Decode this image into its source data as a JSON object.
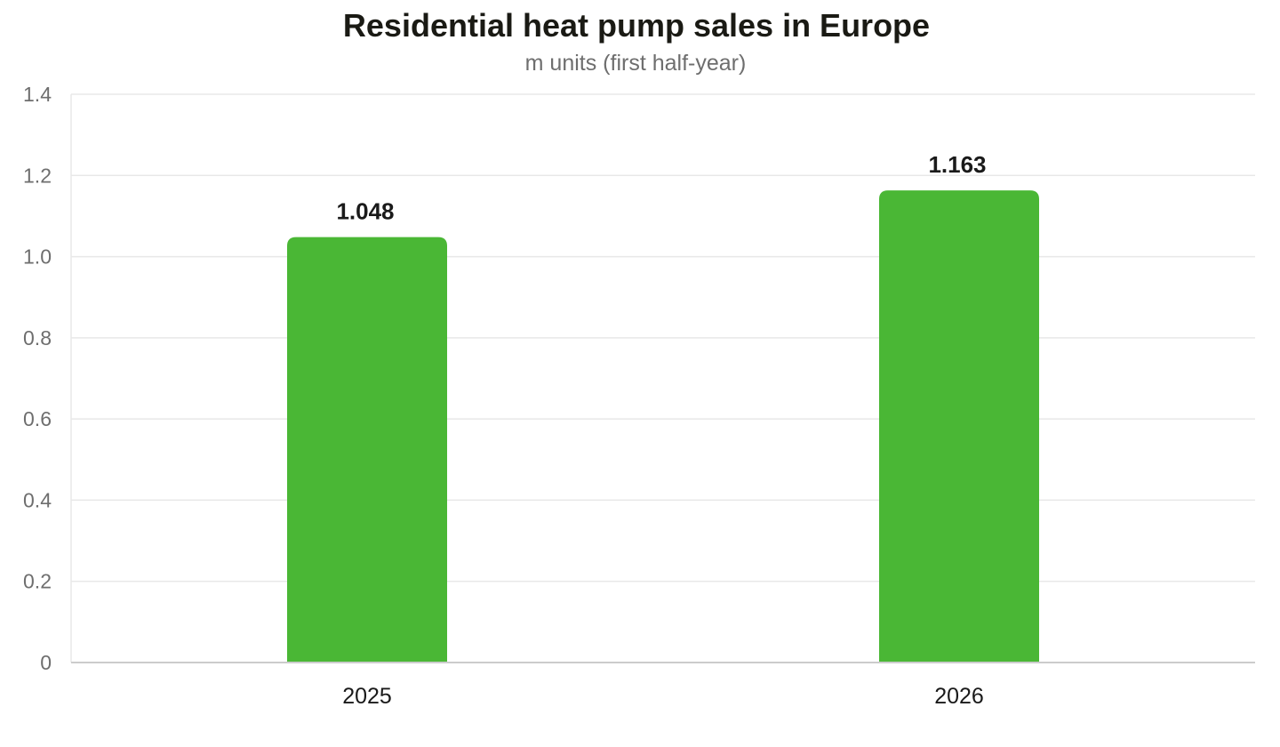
{
  "chart_data": {
    "type": "bar",
    "title": "Residential heat pump sales in Europe",
    "subtitle": "m units (first half-year)",
    "categories": [
      "2025",
      "2026"
    ],
    "values": [
      1.048,
      1.163
    ],
    "value_labels": [
      "1.048",
      "1.163"
    ],
    "ylim": [
      0,
      1.4
    ],
    "yticks": [
      0,
      0.2,
      0.4,
      0.6,
      0.8,
      1.0,
      1.2,
      1.4
    ],
    "ytick_labels": [
      "0",
      "0.2",
      "0.4",
      "0.6",
      "0.8",
      "1.0",
      "1.2",
      "1.4"
    ],
    "xlabel": "",
    "ylabel": "",
    "grid": true,
    "legend": "none",
    "colors": {
      "bar": "#4ab735",
      "grid": "#e8e8e8",
      "axis": "#cccccc"
    }
  }
}
